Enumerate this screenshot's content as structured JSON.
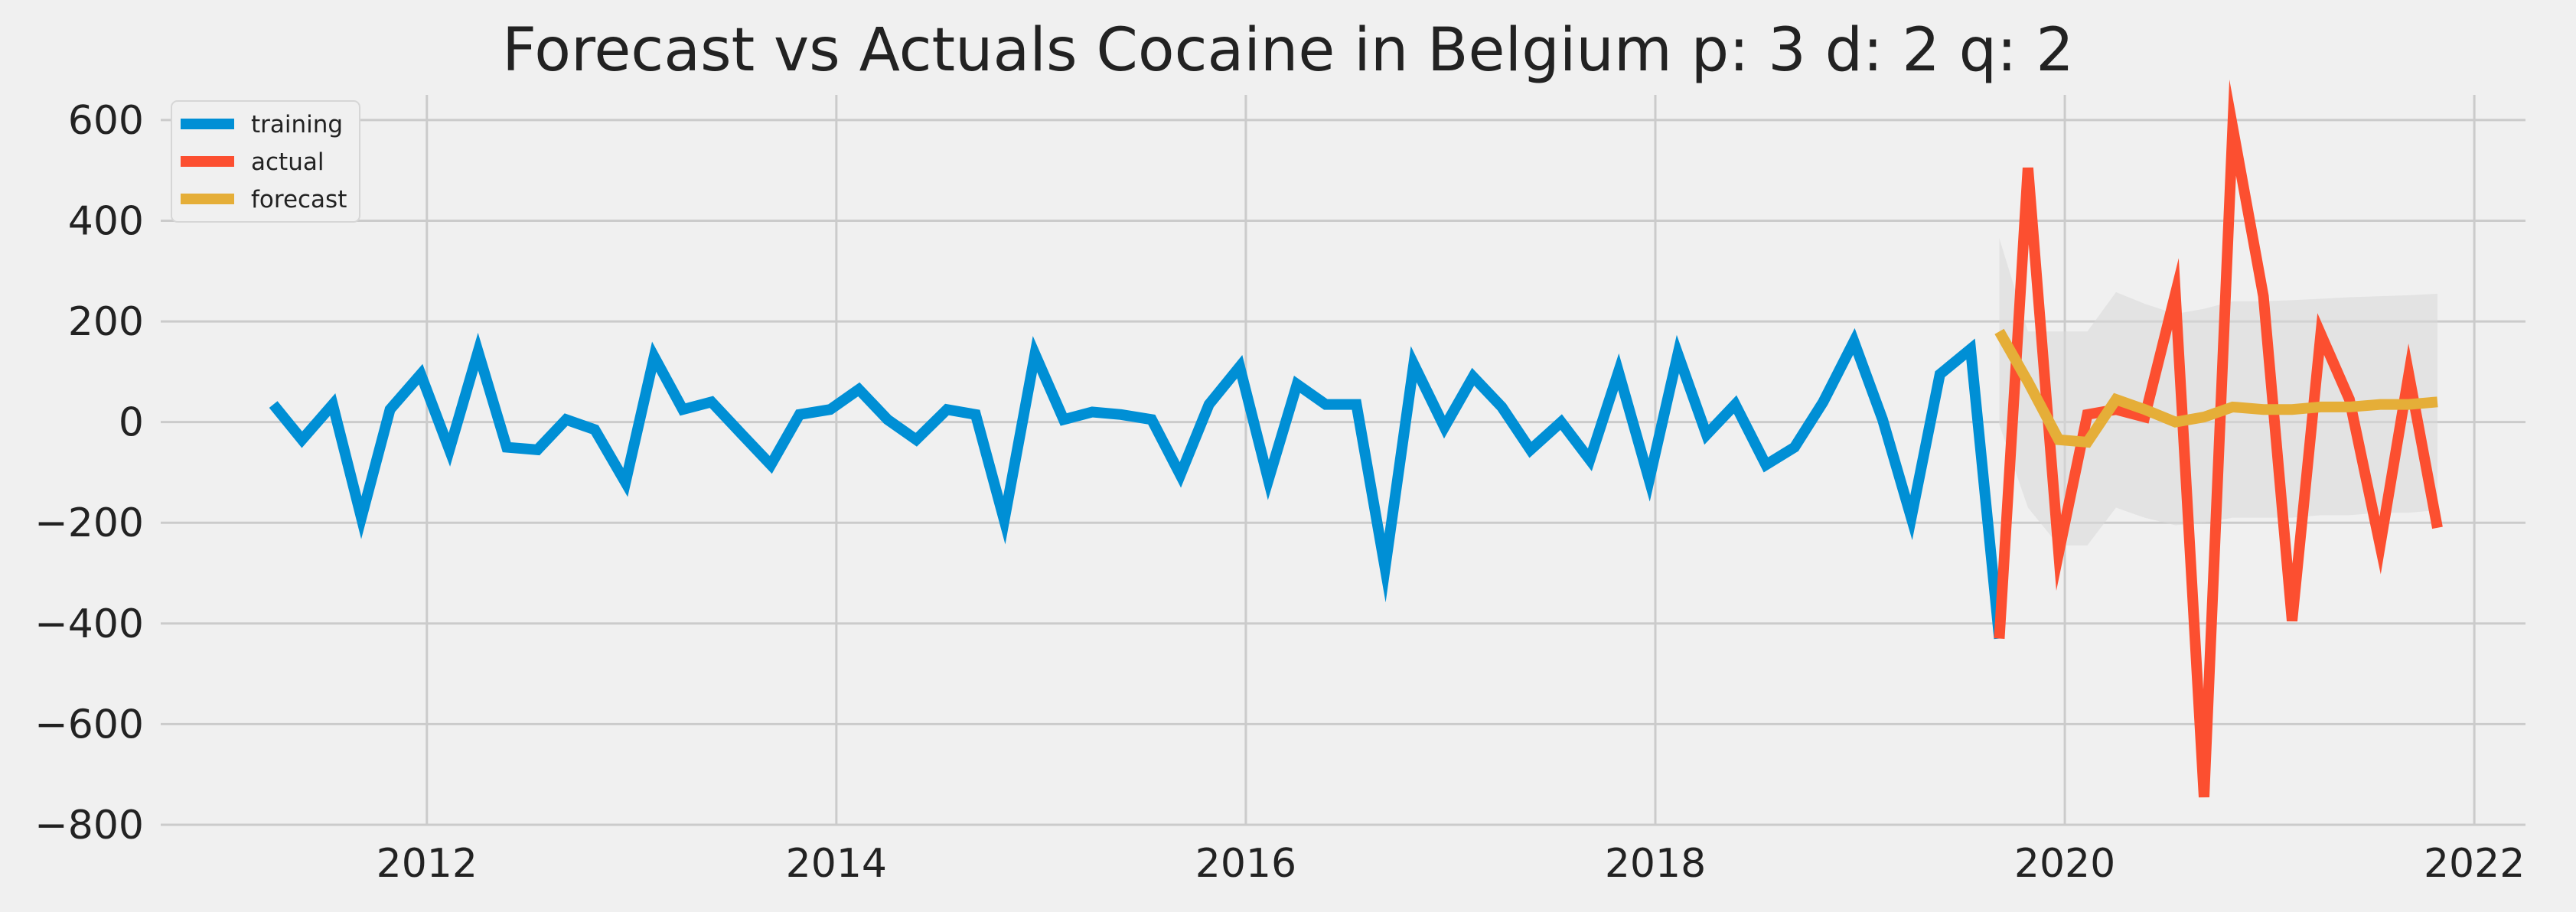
{
  "chart_data": {
    "type": "line",
    "title": "Forecast vs Actuals Cocaine in Belgium p: 3 d: 2 q: 2",
    "xlabel": "",
    "ylabel": "",
    "xlim": [
      2010.7,
      2022.25
    ],
    "ylim": [
      -800,
      650
    ],
    "x_ticks": [
      2012,
      2014,
      2016,
      2018,
      2020,
      2022
    ],
    "y_ticks": [
      -800,
      -600,
      -400,
      -200,
      0,
      200,
      400,
      600
    ],
    "y_tick_labels": [
      "−800",
      "−600",
      "−400",
      "−200",
      "0",
      "200",
      "400",
      "600"
    ],
    "grid": true,
    "legend": {
      "position": "top-left",
      "entries": [
        {
          "label": "training",
          "color": "#008fd5"
        },
        {
          "label": "actual",
          "color": "#fc4f30"
        },
        {
          "label": "forecast",
          "color": "#e5ae38"
        }
      ]
    },
    "series": [
      {
        "name": "training",
        "color": "#008fd5",
        "x": [
          2011.25,
          2011.39,
          2011.54,
          2011.68,
          2011.82,
          2011.97,
          2012.11,
          2012.25,
          2012.39,
          2012.54,
          2012.68,
          2012.82,
          2012.97,
          2013.11,
          2013.25,
          2013.39,
          2013.54,
          2013.68,
          2013.82,
          2013.97,
          2014.11,
          2014.25,
          2014.39,
          2014.54,
          2014.68,
          2014.82,
          2014.97,
          2015.11,
          2015.25,
          2015.39,
          2015.54,
          2015.68,
          2015.82,
          2015.97,
          2016.11,
          2016.25,
          2016.39,
          2016.54,
          2016.68,
          2016.82,
          2016.97,
          2017.11,
          2017.25,
          2017.39,
          2017.54,
          2017.68,
          2017.82,
          2017.97,
          2018.11,
          2018.25,
          2018.39,
          2018.54,
          2018.68,
          2018.82,
          2018.97,
          2019.11,
          2019.25,
          2019.39,
          2019.54,
          2019.68
        ],
        "values": [
          35,
          -35,
          35,
          -190,
          25,
          95,
          -55,
          140,
          -50,
          -55,
          5,
          -15,
          -120,
          130,
          25,
          40,
          -25,
          -85,
          15,
          25,
          65,
          5,
          -35,
          25,
          15,
          -195,
          135,
          5,
          20,
          15,
          5,
          -105,
          35,
          110,
          -115,
          75,
          35,
          35,
          -290,
          115,
          -10,
          90,
          30,
          -55,
          0,
          -75,
          100,
          -115,
          135,
          -25,
          35,
          -85,
          -50,
          40,
          160,
          5,
          -190,
          95,
          145,
          -430
        ]
      },
      {
        "name": "actual",
        "color": "#fc4f30",
        "x": [
          2019.68,
          2019.82,
          2019.97,
          2020.11,
          2020.25,
          2020.39,
          2020.54,
          2020.68,
          2020.82,
          2020.97,
          2021.11,
          2021.25,
          2021.39,
          2021.54,
          2021.68,
          2021.82
        ],
        "values": [
          -430,
          505,
          -260,
          15,
          25,
          10,
          255,
          -745,
          585,
          250,
          -395,
          175,
          45,
          -245,
          95,
          -210
        ]
      },
      {
        "name": "forecast",
        "color": "#e5ae38",
        "x": [
          2019.68,
          2019.82,
          2019.97,
          2020.11,
          2020.25,
          2020.39,
          2020.54,
          2020.68,
          2020.82,
          2020.97,
          2021.11,
          2021.25,
          2021.39,
          2021.54,
          2021.68,
          2021.82
        ],
        "values": [
          180,
          80,
          -35,
          -40,
          45,
          25,
          0,
          10,
          30,
          25,
          25,
          30,
          30,
          35,
          35,
          40
        ]
      }
    ],
    "confidence_interval": {
      "color": "#d9d9d9",
      "x": [
        2019.68,
        2019.82,
        2019.97,
        2020.11,
        2020.25,
        2020.39,
        2020.54,
        2020.68,
        2020.82,
        2020.97,
        2021.11,
        2021.25,
        2021.39,
        2021.54,
        2021.68,
        2021.82
      ],
      "upper": [
        365,
        180,
        180,
        180,
        258,
        235,
        215,
        225,
        240,
        240,
        242,
        245,
        248,
        250,
        252,
        255
      ],
      "lower": [
        -5,
        -170,
        -245,
        -245,
        -170,
        -190,
        -205,
        -200,
        -190,
        -190,
        -190,
        -185,
        -185,
        -180,
        -180,
        -175
      ]
    }
  }
}
